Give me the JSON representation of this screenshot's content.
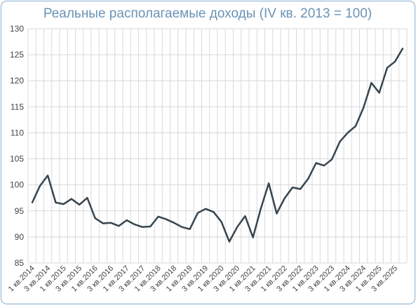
{
  "chart_data": {
    "type": "line",
    "title": "Реальные располагаемые доходы (IV кв. 2013 = 100)",
    "categories": [
      "1 кв.2014",
      null,
      "3 кв.2014",
      null,
      "1 кв.2015",
      null,
      "3 кв.2015",
      null,
      "1 кв.2016",
      null,
      "3 кв.2016",
      null,
      "1 кв.2017",
      null,
      "3 кв.2017",
      null,
      "1 кв.2018",
      null,
      "3 кв.2018",
      null,
      "1 кв.2019",
      null,
      "3 кв.2019",
      null,
      "1 кв.2020",
      null,
      "3 кв.2020",
      null,
      "1 кв.2021",
      null,
      "3 кв.2021",
      null,
      "1 кв.2022",
      null,
      "3 кв.2022",
      null,
      "1 кв.2023",
      null,
      "3 кв.2023",
      null,
      "1 кв.2024",
      null,
      "3 кв.2024",
      null,
      "1 кв.2025",
      null,
      "3 кв.2025",
      null
    ],
    "values": [
      96.5,
      99.8,
      101.8,
      96.6,
      96.3,
      97.3,
      96.2,
      97.5,
      93.6,
      92.6,
      92.7,
      92.1,
      93.2,
      92.4,
      91.9,
      92.0,
      93.9,
      93.4,
      92.7,
      91.9,
      91.5,
      94.6,
      95.4,
      94.8,
      92.9,
      89.1,
      91.9,
      94.0,
      89.9,
      95.5,
      100.3,
      94.5,
      97.4,
      99.5,
      99.2,
      101.2,
      104.2,
      103.7,
      104.9,
      108.3,
      110.0,
      111.3,
      114.8,
      119.6,
      117.7,
      122.5,
      123.7,
      126.3
    ],
    "color": "#36454f",
    "ylim": [
      85,
      130
    ],
    "yticks": [
      85,
      90,
      95,
      100,
      105,
      110,
      115,
      120,
      125,
      130
    ],
    "grid": true
  }
}
